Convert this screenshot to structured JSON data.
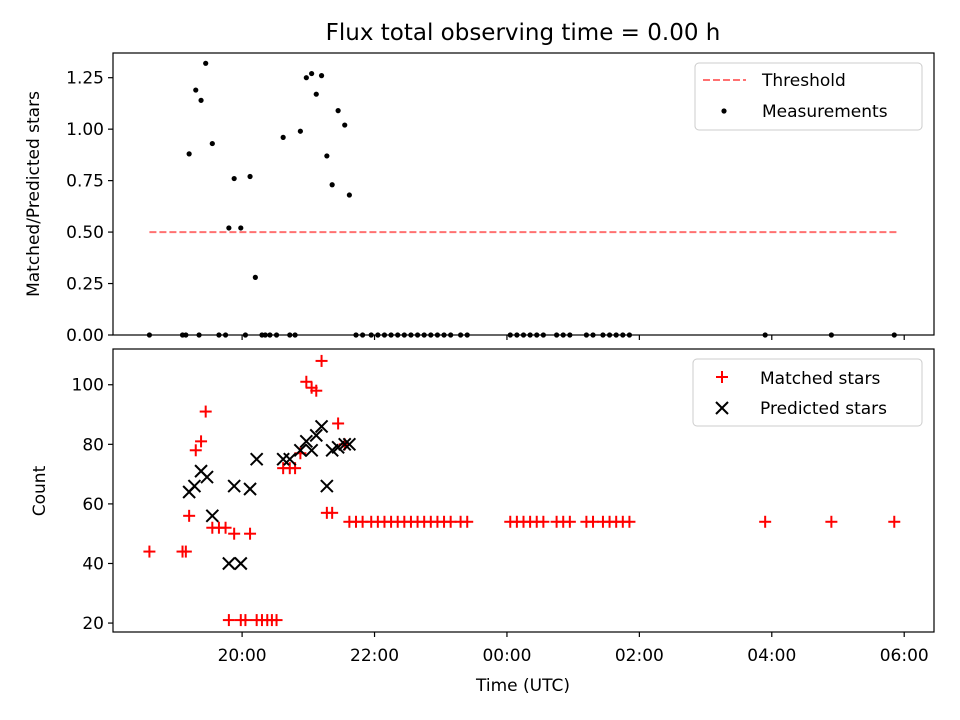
{
  "chart_data": [
    {
      "type": "scatter",
      "title": "Flux total observing time = 0.00 h",
      "xlabel": "",
      "ylabel": "Matched/Predicted stars",
      "x_unit": "hours UTC (values above 24 are after midnight)",
      "xlim": [
        18.05,
        30.45
      ],
      "ylim": [
        0,
        1.37
      ],
      "yticks": [
        0.0,
        0.25,
        0.5,
        0.75,
        1.0,
        1.25
      ],
      "ytick_labels": [
        "0.00",
        "0.25",
        "0.50",
        "0.75",
        "1.00",
        "1.25"
      ],
      "xticks": [
        20,
        22,
        24,
        26,
        28,
        30
      ],
      "legend_position": "top-right",
      "grid": false,
      "threshold": {
        "name": "Threshold",
        "y": 0.5,
        "x_range": [
          18.6,
          29.9
        ],
        "color": "#ff7070",
        "style": "dashed"
      },
      "series": [
        {
          "name": "Measurements",
          "color": "#000000",
          "marker": "dot",
          "points": [
            [
              18.6,
              0.0
            ],
            [
              19.1,
              0.0
            ],
            [
              19.15,
              0.0
            ],
            [
              19.2,
              0.88
            ],
            [
              19.3,
              1.19
            ],
            [
              19.35,
              0.0
            ],
            [
              19.38,
              1.14
            ],
            [
              19.45,
              1.32
            ],
            [
              19.55,
              0.93
            ],
            [
              19.65,
              0.0
            ],
            [
              19.75,
              0.0
            ],
            [
              19.8,
              0.52
            ],
            [
              19.88,
              0.76
            ],
            [
              19.98,
              0.52
            ],
            [
              20.05,
              0.0
            ],
            [
              20.12,
              0.77
            ],
            [
              20.2,
              0.28
            ],
            [
              20.3,
              0.0
            ],
            [
              20.35,
              0.0
            ],
            [
              20.42,
              0.0
            ],
            [
              20.52,
              0.0
            ],
            [
              20.62,
              0.96
            ],
            [
              20.72,
              0.0
            ],
            [
              20.8,
              0.0
            ],
            [
              20.88,
              0.99
            ],
            [
              20.97,
              1.25
            ],
            [
              21.05,
              1.27
            ],
            [
              21.12,
              1.17
            ],
            [
              21.2,
              1.26
            ],
            [
              21.28,
              0.87
            ],
            [
              21.36,
              0.73
            ],
            [
              21.45,
              1.09
            ],
            [
              21.55,
              1.02
            ],
            [
              21.62,
              0.68
            ],
            [
              21.72,
              0.0
            ],
            [
              21.82,
              0.0
            ],
            [
              21.95,
              0.0
            ],
            [
              22.05,
              0.0
            ],
            [
              22.15,
              0.0
            ],
            [
              22.25,
              0.0
            ],
            [
              22.35,
              0.0
            ],
            [
              22.45,
              0.0
            ],
            [
              22.55,
              0.0
            ],
            [
              22.65,
              0.0
            ],
            [
              22.75,
              0.0
            ],
            [
              22.85,
              0.0
            ],
            [
              22.95,
              0.0
            ],
            [
              23.05,
              0.0
            ],
            [
              23.15,
              0.0
            ],
            [
              23.3,
              0.0
            ],
            [
              23.4,
              0.0
            ],
            [
              24.05,
              0.0
            ],
            [
              24.15,
              0.0
            ],
            [
              24.25,
              0.0
            ],
            [
              24.35,
              0.0
            ],
            [
              24.45,
              0.0
            ],
            [
              24.55,
              0.0
            ],
            [
              24.75,
              0.0
            ],
            [
              24.85,
              0.0
            ],
            [
              24.95,
              0.0
            ],
            [
              25.2,
              0.0
            ],
            [
              25.3,
              0.0
            ],
            [
              25.45,
              0.0
            ],
            [
              25.55,
              0.0
            ],
            [
              25.65,
              0.0
            ],
            [
              25.75,
              0.0
            ],
            [
              25.85,
              0.0
            ],
            [
              27.9,
              0.0
            ],
            [
              28.9,
              0.0
            ],
            [
              29.85,
              0.0
            ]
          ]
        }
      ]
    },
    {
      "type": "scatter",
      "title": "",
      "xlabel": "Time (UTC)",
      "ylabel": "Count",
      "x_unit": "hours UTC (values above 24 are after midnight)",
      "xlim": [
        18.05,
        30.45
      ],
      "ylim": [
        17,
        112
      ],
      "yticks": [
        20,
        40,
        60,
        80,
        100
      ],
      "ytick_labels": [
        "20",
        "40",
        "60",
        "80",
        "100"
      ],
      "xticks": [
        20,
        22,
        24,
        26,
        28,
        30
      ],
      "xtick_labels": [
        "20:00",
        "22:00",
        "00:00",
        "02:00",
        "04:00",
        "06:00"
      ],
      "legend_position": "top-right",
      "grid": false,
      "series": [
        {
          "name": "Matched stars",
          "color": "#ff0000",
          "marker": "plus",
          "points": [
            [
              18.6,
              44
            ],
            [
              19.1,
              44
            ],
            [
              19.15,
              44
            ],
            [
              19.2,
              56
            ],
            [
              19.3,
              78
            ],
            [
              19.38,
              81
            ],
            [
              19.45,
              91
            ],
            [
              19.55,
              52
            ],
            [
              19.65,
              52
            ],
            [
              19.75,
              52
            ],
            [
              19.8,
              21
            ],
            [
              19.88,
              50
            ],
            [
              19.98,
              21
            ],
            [
              20.05,
              21
            ],
            [
              20.12,
              50
            ],
            [
              20.22,
              21
            ],
            [
              20.3,
              21
            ],
            [
              20.38,
              21
            ],
            [
              20.45,
              21
            ],
            [
              20.52,
              21
            ],
            [
              20.62,
              72
            ],
            [
              20.72,
              72
            ],
            [
              20.8,
              72
            ],
            [
              20.88,
              77
            ],
            [
              20.97,
              101
            ],
            [
              21.05,
              99
            ],
            [
              21.12,
              98
            ],
            [
              21.2,
              108
            ],
            [
              21.28,
              57
            ],
            [
              21.36,
              57
            ],
            [
              21.45,
              87
            ],
            [
              21.55,
              80
            ],
            [
              21.62,
              54
            ],
            [
              21.72,
              54
            ],
            [
              21.82,
              54
            ],
            [
              21.95,
              54
            ],
            [
              22.05,
              54
            ],
            [
              22.15,
              54
            ],
            [
              22.25,
              54
            ],
            [
              22.35,
              54
            ],
            [
              22.45,
              54
            ],
            [
              22.55,
              54
            ],
            [
              22.65,
              54
            ],
            [
              22.75,
              54
            ],
            [
              22.85,
              54
            ],
            [
              22.95,
              54
            ],
            [
              23.05,
              54
            ],
            [
              23.15,
              54
            ],
            [
              23.3,
              54
            ],
            [
              23.4,
              54
            ],
            [
              24.05,
              54
            ],
            [
              24.15,
              54
            ],
            [
              24.25,
              54
            ],
            [
              24.35,
              54
            ],
            [
              24.45,
              54
            ],
            [
              24.55,
              54
            ],
            [
              24.75,
              54
            ],
            [
              24.85,
              54
            ],
            [
              24.95,
              54
            ],
            [
              25.2,
              54
            ],
            [
              25.3,
              54
            ],
            [
              25.45,
              54
            ],
            [
              25.55,
              54
            ],
            [
              25.65,
              54
            ],
            [
              25.75,
              54
            ],
            [
              25.85,
              54
            ],
            [
              27.9,
              54
            ],
            [
              28.9,
              54
            ],
            [
              29.85,
              54
            ]
          ]
        },
        {
          "name": "Predicted stars",
          "color": "#000000",
          "marker": "x",
          "points": [
            [
              19.2,
              64
            ],
            [
              19.28,
              66
            ],
            [
              19.38,
              71
            ],
            [
              19.47,
              69
            ],
            [
              19.55,
              56
            ],
            [
              19.8,
              40
            ],
            [
              19.88,
              66
            ],
            [
              19.98,
              40
            ],
            [
              20.12,
              65
            ],
            [
              20.22,
              75
            ],
            [
              20.62,
              75
            ],
            [
              20.72,
              75
            ],
            [
              20.88,
              78
            ],
            [
              20.97,
              81
            ],
            [
              21.05,
              78
            ],
            [
              21.12,
              83
            ],
            [
              21.2,
              86
            ],
            [
              21.28,
              66
            ],
            [
              21.36,
              78
            ],
            [
              21.45,
              79
            ],
            [
              21.55,
              80
            ],
            [
              21.62,
              80
            ]
          ]
        }
      ]
    }
  ]
}
